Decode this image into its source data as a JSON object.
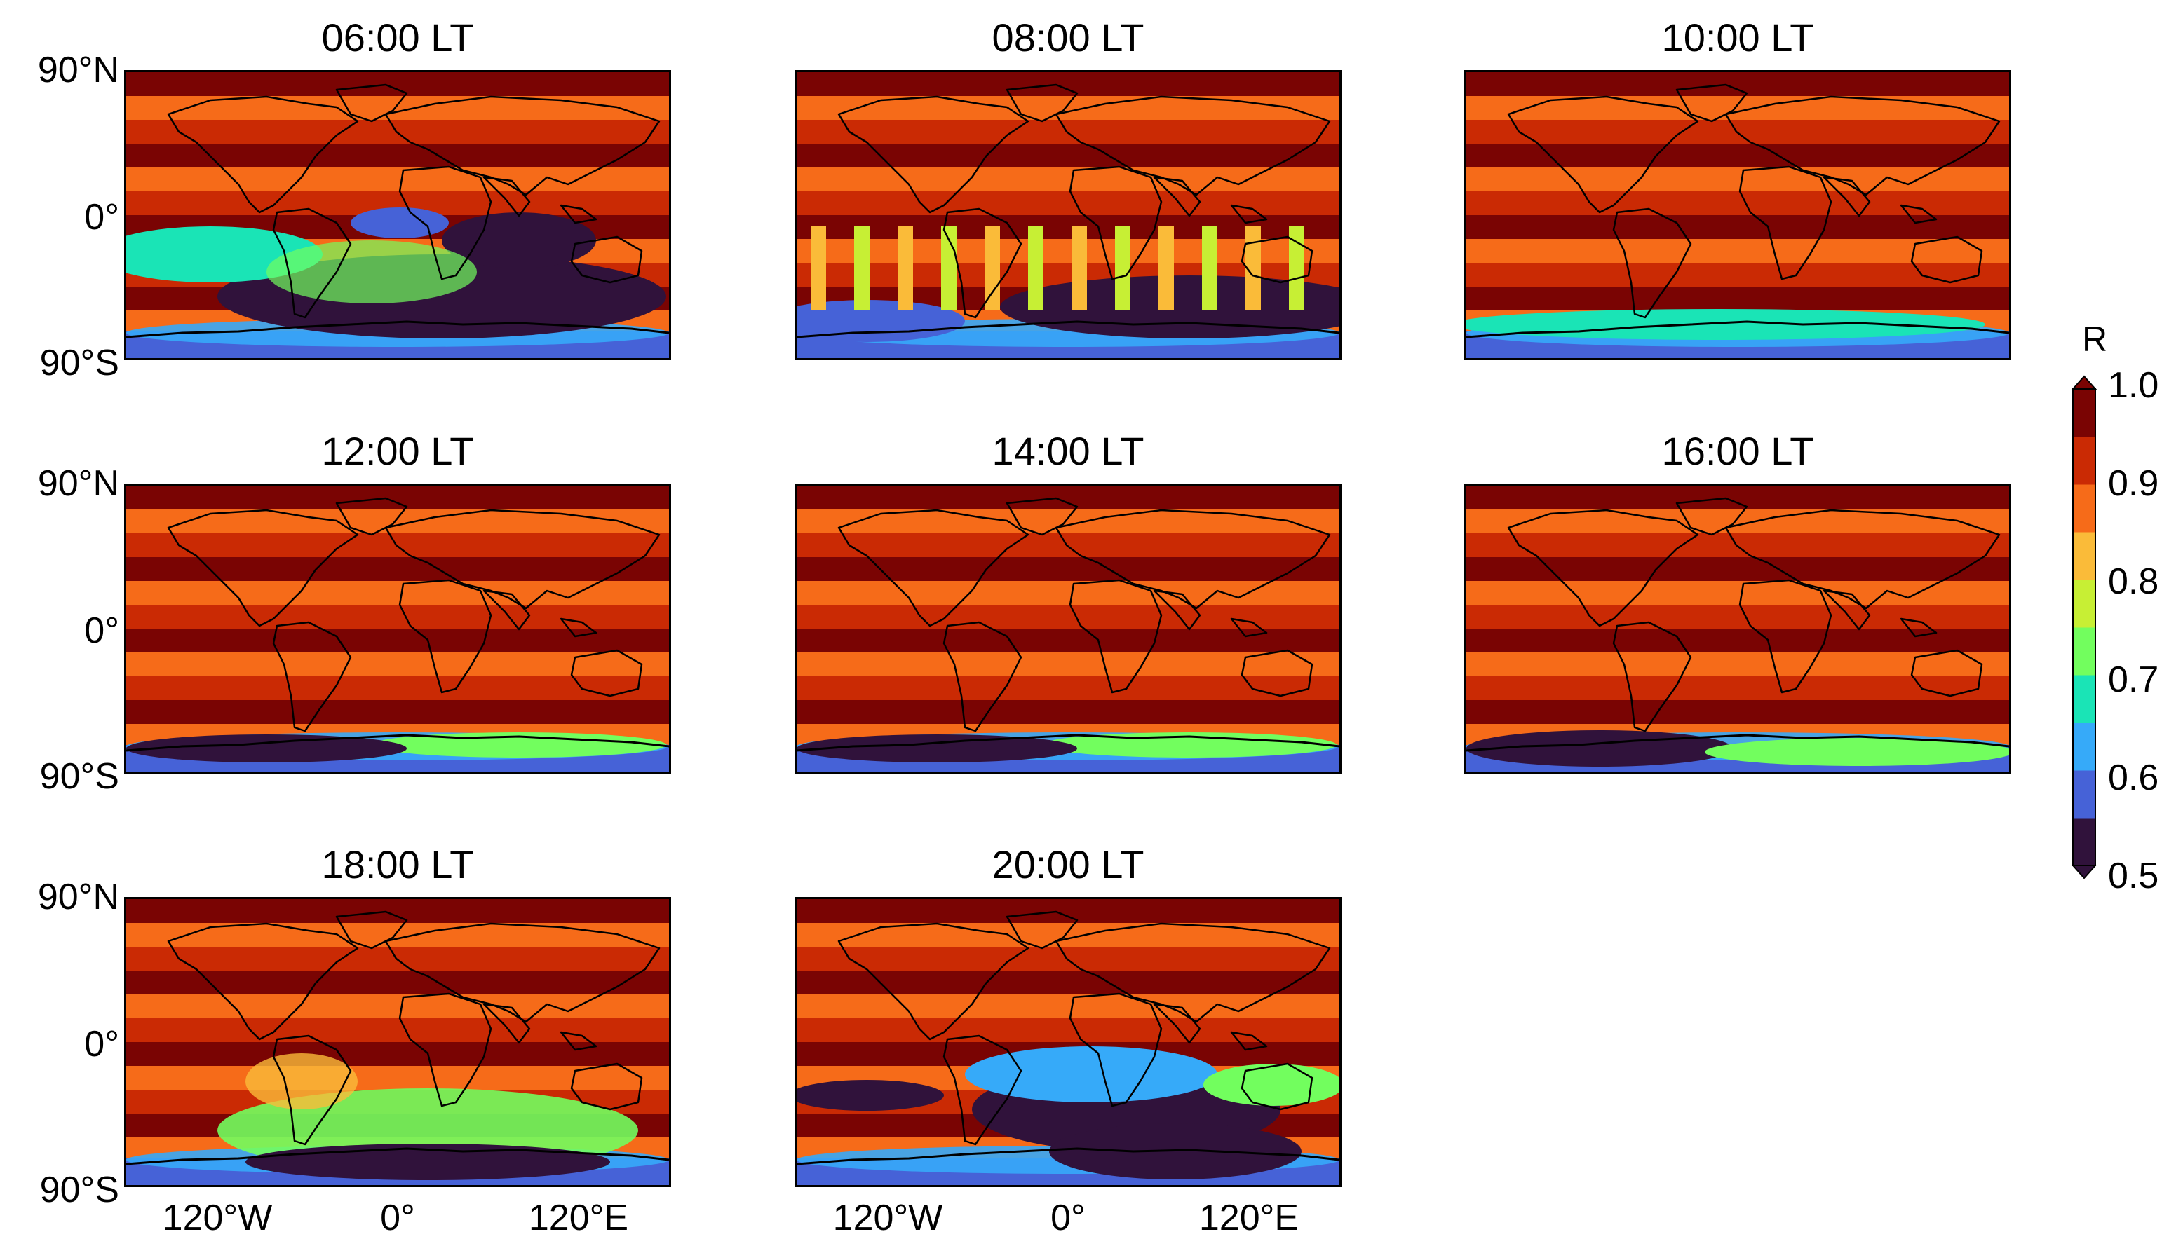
{
  "panels": [
    {
      "title": "06:00 LT",
      "pattern": "strong-south-low"
    },
    {
      "title": "08:00 LT",
      "pattern": "south-low-banded"
    },
    {
      "title": "10:00 LT",
      "pattern": "polar-low"
    },
    {
      "title": "12:00 LT",
      "pattern": "polar-low-weak"
    },
    {
      "title": "14:00 LT",
      "pattern": "polar-low-weak"
    },
    {
      "title": "16:00 LT",
      "pattern": "polar-low-west"
    },
    {
      "title": "18:00 LT",
      "pattern": "mid-south-low"
    },
    {
      "title": "20:00 LT",
      "pattern": "strong-south-low-evening"
    }
  ],
  "axes": {
    "lat_labels": [
      "90°N",
      "0°",
      "90°S"
    ],
    "lon_labels": [
      "120°W",
      "0°",
      "120°E"
    ]
  },
  "colorbar": {
    "label": "R",
    "ticks": [
      "1.0",
      "0.9",
      "0.8",
      "0.7",
      "0.6",
      "0.5"
    ],
    "min": 0.5,
    "max": 1.0,
    "colormap": [
      "#30123b",
      "#4662d7",
      "#36aaf9",
      "#1ae4b6",
      "#72fe5e",
      "#c7ef34",
      "#fabb39",
      "#f66b19",
      "#ca2a04",
      "#7a0403"
    ]
  },
  "coastline_color": "#000000"
}
